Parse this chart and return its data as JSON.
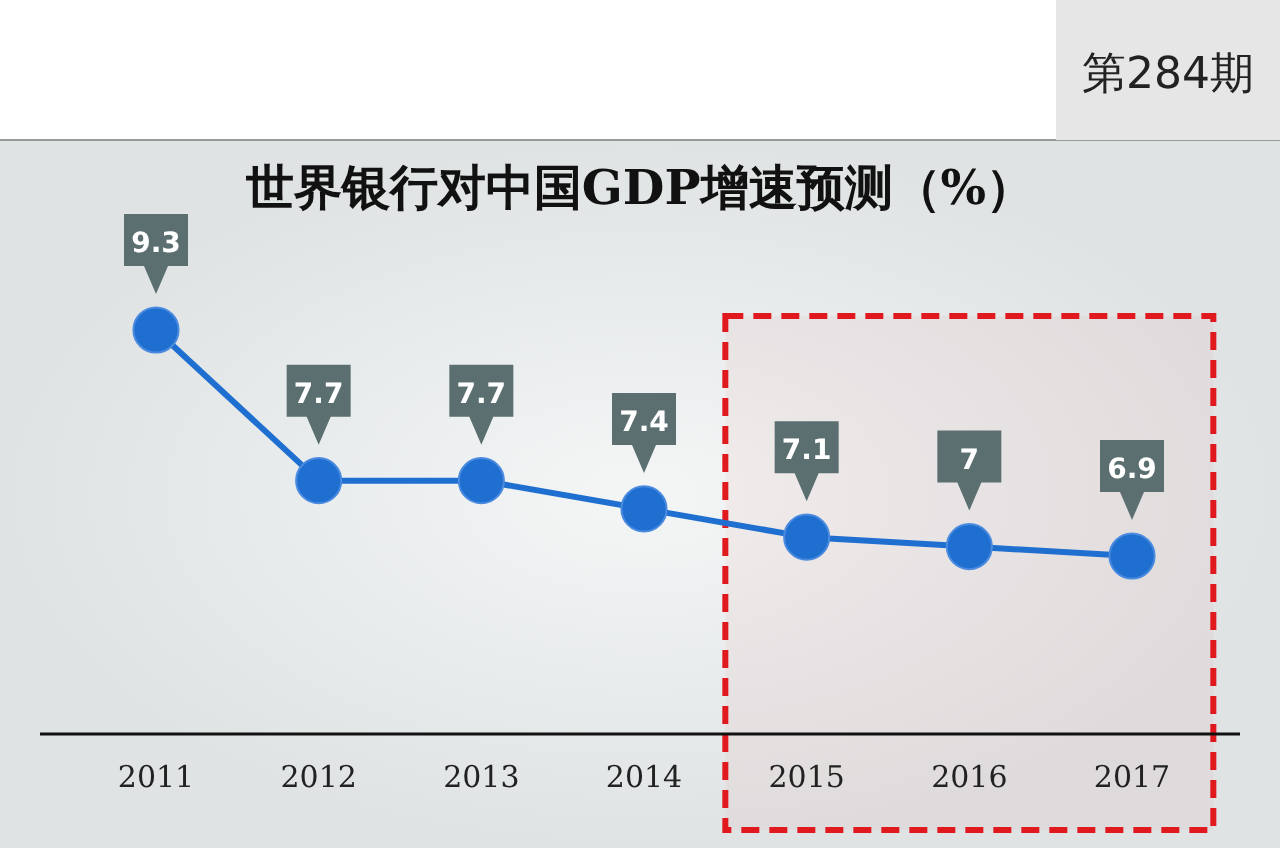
{
  "chart_data": {
    "type": "line",
    "title": "世界银行对中国GDP增速预测（%）",
    "categories": [
      "2011",
      "2012",
      "2013",
      "2014",
      "2015",
      "2016",
      "2017"
    ],
    "series": [
      {
        "color": "#1f6fd0",
        "values": [
          9.3,
          7.7,
          7.7,
          7.4,
          7.1,
          7,
          6.9
        ]
      }
    ],
    "tick_labels": "x",
    "data_labels": true,
    "marker": "circle",
    "line_style": "solid",
    "bands": [
      {
        "axis": "x",
        "from": "2015",
        "to": "2017",
        "color": "#e0191e"
      }
    ],
    "annotations": [
      "第284期"
    ]
  }
}
